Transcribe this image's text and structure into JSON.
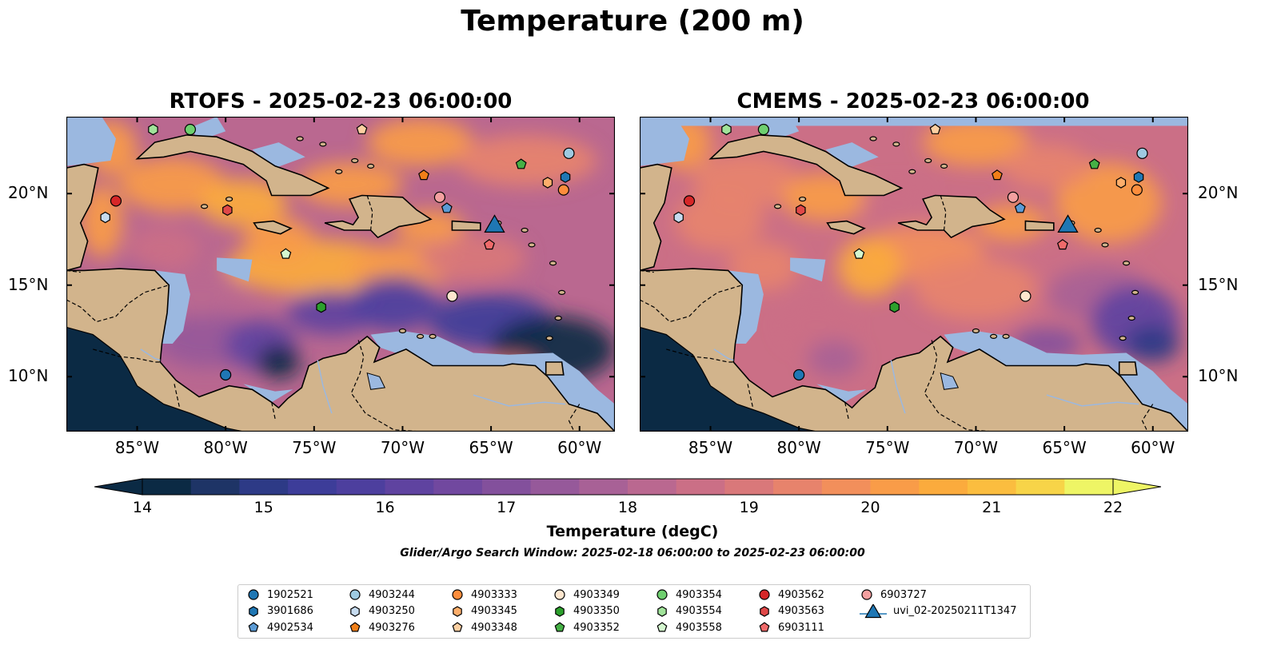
{
  "suptitle": "Temperature (200 m)",
  "panels": [
    {
      "title": "RTOFS - 2025-02-23 06:00:00",
      "model": "RTOFS"
    },
    {
      "title": "CMEMS - 2025-02-23 06:00:00",
      "model": "CMEMS"
    }
  ],
  "map_extent": {
    "lon": [
      -89,
      -58
    ],
    "lat": [
      7,
      24.2
    ]
  },
  "lon_ticks": [
    "85°W",
    "80°W",
    "75°W",
    "70°W",
    "65°W",
    "60°W"
  ],
  "lon_values": [
    -85,
    -80,
    -75,
    -70,
    -65,
    -60
  ],
  "lat_ticks": [
    "20°N",
    "15°N",
    "10°N"
  ],
  "lat_values": [
    20,
    15,
    10
  ],
  "colorbar": {
    "label": "Temperature (degC)",
    "ticks": [
      "14",
      "15",
      "16",
      "17",
      "18",
      "19",
      "20",
      "21",
      "22"
    ],
    "tick_values": [
      14,
      15,
      16,
      17,
      18,
      19,
      20,
      21,
      22
    ],
    "range": [
      14,
      22
    ],
    "step": 0.5,
    "colors": [
      "#0b2a44",
      "#1e3466",
      "#2d3a86",
      "#3d3d99",
      "#4d3f9e",
      "#5f43a0",
      "#71489f",
      "#83509c",
      "#96599a",
      "#a86196",
      "#ba6890",
      "#cb6f86",
      "#d9787a",
      "#e7836c",
      "#f28f5b",
      "#f99c48",
      "#fbab3d",
      "#fbbd3f",
      "#f7d448",
      "#eef565"
    ]
  },
  "search_window": "Glider/Argo Search Window: 2025-02-18 06:00:00 to 2025-02-23 06:00:00",
  "colors": {
    "ocean_cold": "#0b2a44",
    "land": "#d2b48c",
    "shelf": "#9bb8e0",
    "coast": "#000000"
  },
  "floats": [
    {
      "id": "1902521",
      "marker": "circle",
      "color": "#1f77b4",
      "lon": -80.0,
      "lat": 10.1
    },
    {
      "id": "3901686",
      "marker": "hexagon",
      "color": "#1f77b4",
      "lon": -60.8,
      "lat": 20.9
    },
    {
      "id": "4902534",
      "marker": "pentagon",
      "color": "#5b9bd5",
      "lon": -67.5,
      "lat": 19.2
    },
    {
      "id": "4903244",
      "marker": "circle",
      "color": "#9ecae1",
      "lon": -60.6,
      "lat": 22.2
    },
    {
      "id": "4903250",
      "marker": "hexagon",
      "color": "#c6dbef",
      "lon": -86.8,
      "lat": 18.7
    },
    {
      "id": "4903276",
      "marker": "pentagon",
      "color": "#f07f18",
      "lon": -68.8,
      "lat": 21.0
    },
    {
      "id": "4903333",
      "marker": "circle",
      "color": "#fd8d3c",
      "lon": -60.9,
      "lat": 20.2
    },
    {
      "id": "4903345",
      "marker": "hexagon",
      "color": "#fdae6b",
      "lon": -61.8,
      "lat": 20.6
    },
    {
      "id": "4903348",
      "marker": "pentagon",
      "color": "#fdd0a2",
      "lon": -72.3,
      "lat": 23.5
    },
    {
      "id": "4903349",
      "marker": "circle",
      "color": "#fee6ce",
      "lon": -67.2,
      "lat": 14.4
    },
    {
      "id": "4903350",
      "marker": "hexagon",
      "color": "#2ca02c",
      "lon": -74.6,
      "lat": 13.8
    },
    {
      "id": "4903352",
      "marker": "pentagon",
      "color": "#45b045",
      "lon": -63.3,
      "lat": 21.6
    },
    {
      "id": "4903354",
      "marker": "circle",
      "color": "#6fcf6f",
      "lon": -82.0,
      "lat": 23.5
    },
    {
      "id": "4903554",
      "marker": "hexagon",
      "color": "#a1e39a",
      "lon": -84.1,
      "lat": 23.5
    },
    {
      "id": "4903558",
      "marker": "pentagon",
      "color": "#d4f7cf",
      "lon": -76.6,
      "lat": 16.7
    },
    {
      "id": "4903562",
      "marker": "circle",
      "color": "#d62728",
      "lon": -86.2,
      "lat": 19.6
    },
    {
      "id": "4903563",
      "marker": "hexagon",
      "color": "#e04848",
      "lon": -79.9,
      "lat": 19.1
    },
    {
      "id": "6903111",
      "marker": "pentagon",
      "color": "#f06a6a",
      "lon": -65.1,
      "lat": 17.2
    },
    {
      "id": "6903727",
      "marker": "circle",
      "color": "#f4a0a0",
      "lon": -67.9,
      "lat": 19.8
    },
    {
      "id": "uvi_02-20250211T1347",
      "marker": "triangle",
      "color": "#1f77b4",
      "lon": -64.8,
      "lat": 18.2
    }
  ]
}
